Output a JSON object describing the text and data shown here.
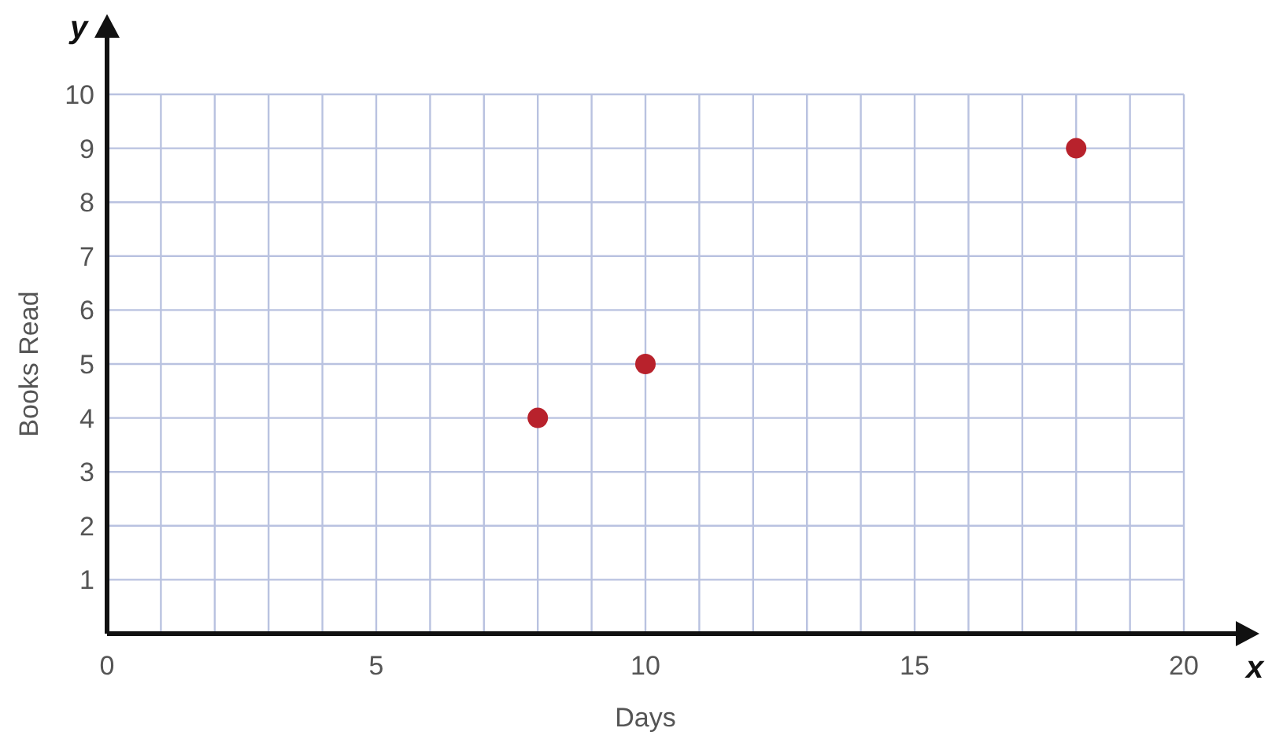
{
  "chart_data": {
    "type": "scatter",
    "xlabel": "Days",
    "ylabel": "Books Read",
    "x": [
      8,
      10,
      18
    ],
    "series": [
      {
        "color": "#b8222c",
        "values": [
          4,
          5,
          9
        ]
      }
    ],
    "xlim": [
      0,
      20
    ],
    "ylim": [
      0,
      10
    ],
    "xticks": [
      0,
      {
        "value": 1,
        "label": null
      },
      {
        "value": 2,
        "label": null
      },
      {
        "value": 3,
        "label": null
      },
      {
        "value": 4,
        "label": null
      },
      5,
      {
        "value": 6,
        "label": null
      },
      {
        "value": 7,
        "label": null
      },
      {
        "value": 8,
        "label": null
      },
      {
        "value": 9,
        "label": null
      },
      10,
      {
        "value": 11,
        "label": null
      },
      {
        "value": 12,
        "label": null
      },
      {
        "value": 13,
        "label": null
      },
      {
        "value": 14,
        "label": null
      },
      15,
      {
        "value": 16,
        "label": null
      },
      {
        "value": 17,
        "label": null
      },
      {
        "value": 18,
        "label": null
      },
      {
        "value": 19,
        "label": null
      },
      20
    ],
    "yticks": [
      {
        "value": 0,
        "label": null
      },
      1,
      2,
      3,
      4,
      5,
      6,
      7,
      8,
      9,
      10
    ],
    "grid": true,
    "marker": "circle",
    "annotations": [
      "x",
      "y"
    ]
  }
}
